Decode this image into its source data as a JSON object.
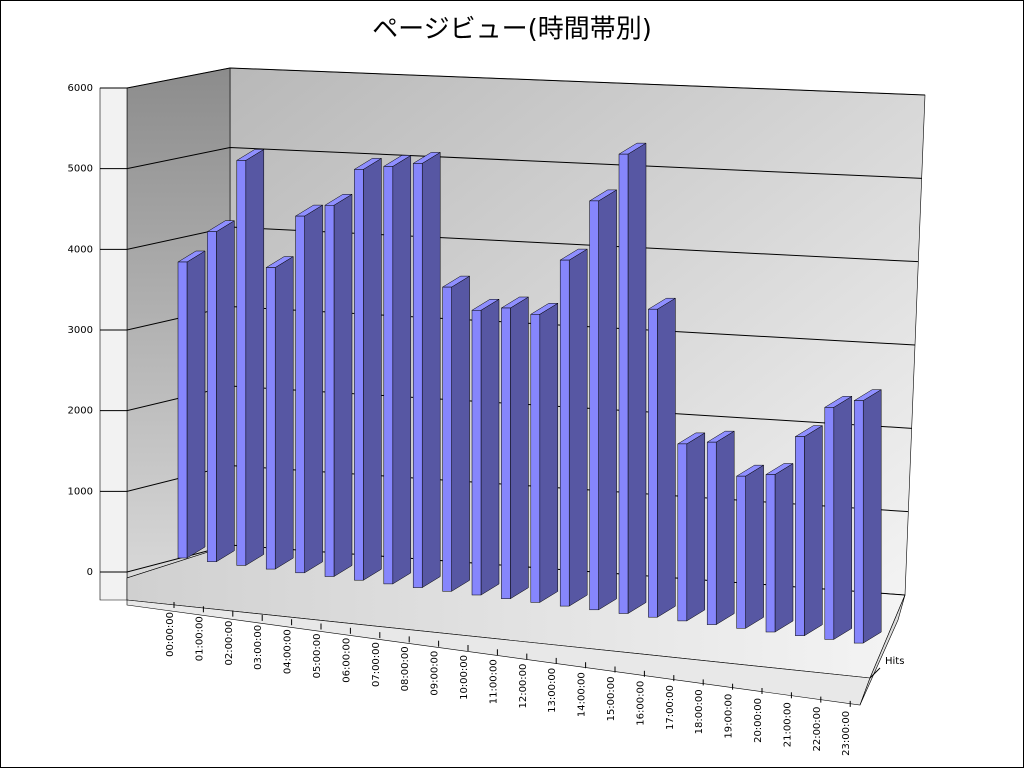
{
  "chart_data": {
    "type": "bar3d",
    "title": "ページビュー(時間帯別)",
    "categories": [
      "00:00:00",
      "01:00:00",
      "02:00:00",
      "03:00:00",
      "04:00:00",
      "05:00:00",
      "06:00:00",
      "07:00:00",
      "08:00:00",
      "09:00:00",
      "10:00:00",
      "11:00:00",
      "12:00:00",
      "13:00:00",
      "14:00:00",
      "15:00:00",
      "16:00:00",
      "17:00:00",
      "18:00:00",
      "19:00:00",
      "20:00:00",
      "21:00:00",
      "22:00:00",
      "23:00:00"
    ],
    "series": [
      {
        "name": "Hits",
        "color": "#8080f0",
        "values": [
          3700,
          4100,
          5000,
          3700,
          4350,
          4500,
          4950,
          5000,
          5050,
          3600,
          3350,
          3400,
          3350,
          4000,
          4700,
          5250,
          3500,
          2000,
          2050,
          1700,
          1750,
          2200,
          2550,
          2650
        ]
      }
    ],
    "ylim": [
      0,
      6000
    ],
    "yticks": [
      0,
      1000,
      2000,
      3000,
      4000,
      5000,
      6000
    ],
    "grid": true
  }
}
